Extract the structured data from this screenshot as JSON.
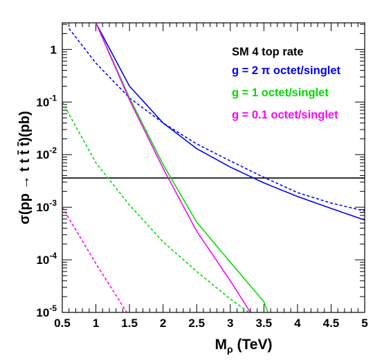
{
  "chart_data": {
    "type": "line",
    "xlabel": "M_ρ (TeV)",
    "ylabel": "σ(pp → t t t̄ t̄)(pb)",
    "xlim": [
      0.5,
      5.0
    ],
    "ylim": [
      1e-05,
      3.2
    ],
    "yscale": "log",
    "grid": false,
    "legend_position": "top-right",
    "x_ticks": [
      "0.5",
      "1",
      "1.5",
      "2",
      "2.5",
      "3",
      "3.5",
      "4",
      "4.5",
      "5"
    ],
    "y_ticks": [
      {
        "base": "10",
        "exp": "-5",
        "value": 1e-05
      },
      {
        "base": "10",
        "exp": "-4",
        "value": 0.0001
      },
      {
        "base": "10",
        "exp": "-3",
        "value": 0.001
      },
      {
        "base": "10",
        "exp": "-2",
        "value": 0.01
      },
      {
        "base": "10",
        "exp": "-1",
        "value": 0.1
      },
      {
        "base": "1",
        "exp": "",
        "value": 1
      }
    ],
    "legend": [
      {
        "label": "SM 4 top rate",
        "color": "#000000"
      },
      {
        "label": "g = 2 π octet/singlet",
        "color": "#0000ff"
      },
      {
        "label": "g = 1 octet/singlet",
        "color": "#00dd00"
      },
      {
        "label": "g = 0.1 octet/singlet",
        "color": "#ff00ff"
      }
    ],
    "series": [
      {
        "color": "#000000",
        "dash": false,
        "x": [
          0.5,
          5.0
        ],
        "y": [
          0.0036,
          0.0036
        ]
      },
      {
        "color": "#0000ff",
        "dash": false,
        "x": [
          1.0,
          1.5,
          2.0,
          2.5,
          3.0,
          3.5,
          4.0,
          4.5,
          5.0
        ],
        "y": [
          3.2,
          0.2,
          0.04,
          0.013,
          0.0058,
          0.0029,
          0.0016,
          0.00095,
          0.00057
        ]
      },
      {
        "color": "#0000ff",
        "dash": true,
        "x": [
          0.6,
          1.0,
          1.5,
          2.0,
          2.5,
          3.0,
          3.5,
          4.0,
          4.5,
          5.0
        ],
        "y": [
          2.5,
          0.55,
          0.12,
          0.04,
          0.016,
          0.0076,
          0.0037,
          0.0019,
          0.0012,
          0.00085
        ]
      },
      {
        "color": "#00dd00",
        "dash": false,
        "x": [
          1.0,
          1.5,
          2.0,
          2.5,
          3.0,
          3.5,
          3.56
        ],
        "y": [
          3.2,
          0.12,
          0.0065,
          0.00052,
          9e-05,
          1.6e-05,
          1e-05
        ]
      },
      {
        "color": "#00dd00",
        "dash": true,
        "x": [
          0.5,
          1.0,
          1.5,
          2.0,
          2.5,
          3.0,
          3.28
        ],
        "y": [
          0.1,
          0.007,
          0.0011,
          0.00022,
          6e-05,
          1.8e-05,
          1e-05
        ]
      },
      {
        "color": "#ff00ff",
        "dash": false,
        "x": [
          1.0,
          1.5,
          2.0,
          2.5,
          3.0,
          3.3
        ],
        "y": [
          3.2,
          0.11,
          0.0055,
          0.00035,
          4e-05,
          1e-05
        ]
      },
      {
        "color": "#ff00ff",
        "dash": true,
        "x": [
          0.5,
          1.0,
          1.46
        ],
        "y": [
          0.001,
          8.5e-05,
          1e-05
        ]
      }
    ]
  }
}
